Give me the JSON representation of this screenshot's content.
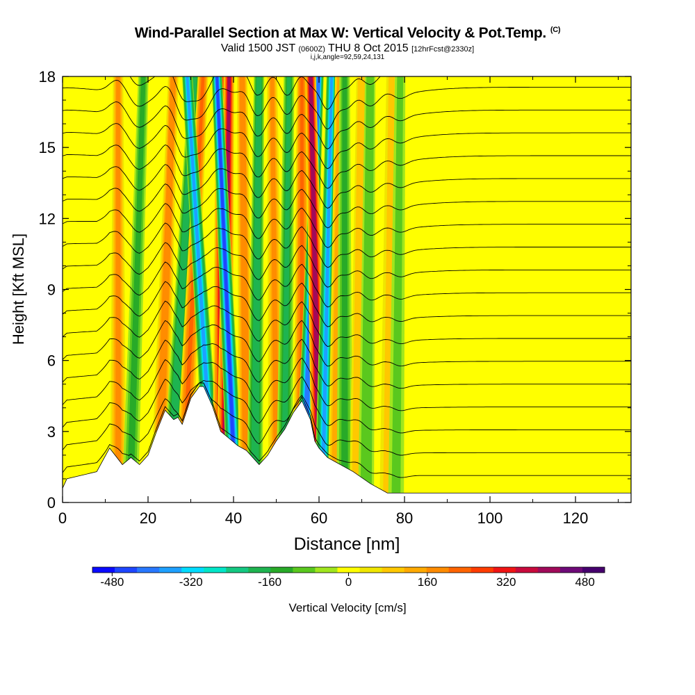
{
  "chart_data": {
    "type": "heatmap",
    "title": "Wind-Parallel Section at Max W: Vertical Velocity & Pot.Temp.",
    "title_mark": "(C)",
    "subtitle": {
      "main": "Valid 1500 JST",
      "utc": "(0600Z)",
      "date": "THU 8 Oct 2015",
      "run": "[12hrFcst@2330z]"
    },
    "params": "i,j,k,angle=92,59,24,131",
    "xlabel": "Distance [nm]",
    "ylabel": "Height [Kft MSL]",
    "xlim": [
      0,
      133
    ],
    "ylim": [
      0,
      18
    ],
    "x_ticks": [
      "0",
      "20",
      "40",
      "60",
      "80",
      "100",
      "120"
    ],
    "y_ticks": [
      "0",
      "3",
      "6",
      "9",
      "12",
      "15",
      "18"
    ],
    "colorbar": {
      "label": "Vertical Velocity [cm/s]",
      "range": [
        -520,
        520
      ],
      "tick_labels": [
        "-480",
        "-320",
        "-160",
        "0",
        "160",
        "320",
        "480"
      ],
      "colors": [
        "#0a0aff",
        "#1e46ff",
        "#2878ff",
        "#1ea0ff",
        "#00dcff",
        "#00e6c8",
        "#14c882",
        "#1eb450",
        "#28aa28",
        "#5ac81e",
        "#a0e61e",
        "#ffff00",
        "#f0e600",
        "#ffc800",
        "#ffaa00",
        "#ff8c00",
        "#ff6400",
        "#ff3c00",
        "#f01414",
        "#c80a3c",
        "#a00a5a",
        "#6e0a78",
        "#46006e"
      ]
    },
    "terrain_kft": [
      [
        0,
        0.6
      ],
      [
        1,
        1.0
      ],
      [
        8,
        1.3
      ],
      [
        11,
        2.3
      ],
      [
        14,
        1.6
      ],
      [
        16,
        1.9
      ],
      [
        18,
        1.6
      ],
      [
        20,
        2.0
      ],
      [
        22,
        3.0
      ],
      [
        24,
        3.9
      ],
      [
        26,
        3.5
      ],
      [
        27,
        3.6
      ],
      [
        28,
        3.3
      ],
      [
        30,
        4.4
      ],
      [
        32,
        4.9
      ],
      [
        33,
        4.9
      ],
      [
        35,
        4.1
      ],
      [
        37,
        3.0
      ],
      [
        39,
        2.7
      ],
      [
        41,
        2.4
      ],
      [
        43,
        2.2
      ],
      [
        45,
        1.8
      ],
      [
        46,
        1.6
      ],
      [
        48,
        2.0
      ],
      [
        50,
        2.6
      ],
      [
        52,
        3.1
      ],
      [
        54,
        3.8
      ],
      [
        56,
        4.3
      ],
      [
        58,
        3.5
      ],
      [
        59,
        2.6
      ],
      [
        60,
        2.3
      ],
      [
        62,
        1.9
      ],
      [
        64,
        1.7
      ],
      [
        68,
        1.3
      ],
      [
        72,
        0.8
      ],
      [
        76,
        0.4
      ],
      [
        133,
        0.4
      ]
    ],
    "vertical_velocity_bands": [
      {
        "x_base": 13,
        "x_top": 13,
        "w": 160
      },
      {
        "x_base": 16,
        "x_top": 19,
        "w": -120
      },
      {
        "x_base": 23,
        "x_top": 26,
        "w": 200
      },
      {
        "x_base": 26,
        "x_top": 31,
        "w": -200
      },
      {
        "x_base": 29,
        "x_top": 33,
        "w": 220
      },
      {
        "x_base": 34,
        "x_top": 29,
        "w": -340
      },
      {
        "x_base": 37,
        "x_top": 37,
        "w": 340
      },
      {
        "x_base": 38,
        "x_top": 39,
        "w": 400
      },
      {
        "x_base": 40,
        "x_top": 36,
        "w": -430
      },
      {
        "x_base": 43,
        "x_top": 42,
        "w": 200
      },
      {
        "x_base": 45,
        "x_top": 46,
        "w": -200
      },
      {
        "x_base": 50,
        "x_top": 49,
        "w": 160
      },
      {
        "x_base": 52,
        "x_top": 53,
        "w": -160
      },
      {
        "x_base": 56,
        "x_top": 56,
        "w": 220
      },
      {
        "x_base": 57,
        "x_top": 60,
        "w": -420
      },
      {
        "x_base": 60,
        "x_top": 58,
        "w": 420
      },
      {
        "x_base": 61,
        "x_top": 63,
        "w": -340
      },
      {
        "x_base": 64,
        "x_top": 65,
        "w": 130
      },
      {
        "x_base": 66,
        "x_top": 66,
        "w": -120
      },
      {
        "x_base": 69,
        "x_top": 70,
        "w": 110
      },
      {
        "x_base": 71,
        "x_top": 72,
        "w": -110
      },
      {
        "x_base": 76,
        "x_top": 77,
        "w": 80
      },
      {
        "x_base": 78,
        "x_top": 79,
        "w": -80
      }
    ],
    "theta_contour_levels_c": [
      18,
      20,
      22,
      24,
      26,
      28,
      30,
      32,
      34,
      36,
      38,
      40,
      42,
      44,
      46,
      48,
      50,
      52,
      54
    ]
  }
}
